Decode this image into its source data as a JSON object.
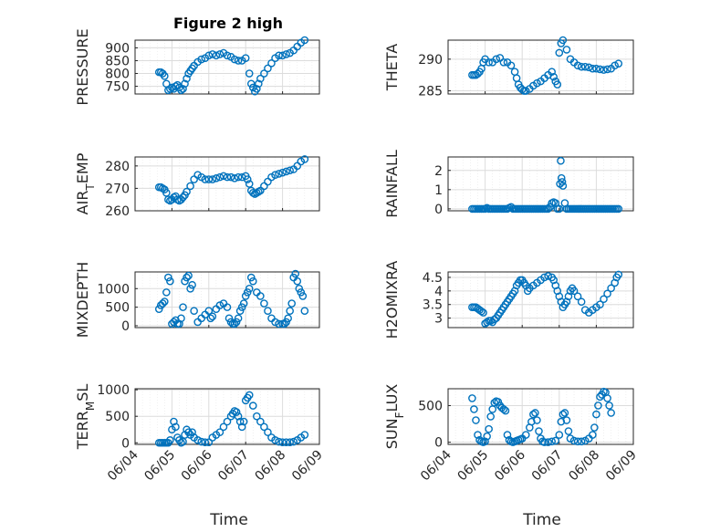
{
  "figure": {
    "title": "Figure 2 high",
    "xlabel": "Time",
    "marker_color": "#0072BD",
    "grid": true
  },
  "chart_data": [
    {
      "type": "scatter",
      "ylabel": "PRESSURE",
      "ylim": [
        720,
        930
      ],
      "yticks": [
        "750",
        "800",
        "850",
        "900"
      ],
      "ytick_values": [
        750,
        800,
        850,
        900
      ],
      "xlim": [
        0,
        5
      ],
      "xticks": [
        "06/04",
        "06/05",
        "06/06",
        "06/07",
        "06/08",
        "06/09"
      ],
      "x": [
        0.65,
        0.7,
        0.75,
        0.8,
        0.85,
        0.9,
        0.95,
        1.0,
        1.05,
        1.1,
        1.15,
        1.2,
        1.25,
        1.3,
        1.35,
        1.4,
        1.45,
        1.5,
        1.55,
        1.6,
        1.7,
        1.8,
        1.9,
        2.0,
        2.1,
        2.2,
        2.3,
        2.4,
        2.5,
        2.6,
        2.7,
        2.8,
        2.9,
        3.0,
        3.1,
        3.15,
        3.2,
        3.25,
        3.3,
        3.35,
        3.4,
        3.5,
        3.6,
        3.7,
        3.8,
        3.9,
        4.0,
        4.1,
        4.2,
        4.3,
        4.4,
        4.5,
        4.6
      ],
      "y": [
        805,
        805,
        800,
        790,
        760,
        735,
        740,
        745,
        740,
        750,
        755,
        745,
        735,
        740,
        760,
        780,
        800,
        810,
        820,
        830,
        845,
        855,
        860,
        870,
        875,
        870,
        875,
        880,
        870,
        865,
        855,
        850,
        850,
        860,
        800,
        760,
        745,
        730,
        740,
        760,
        780,
        800,
        820,
        840,
        860,
        870,
        870,
        875,
        880,
        890,
        905,
        920,
        930
      ]
    },
    {
      "type": "scatter",
      "ylabel": "THETA",
      "ylim": [
        284.5,
        293
      ],
      "yticks": [
        "285",
        "290"
      ],
      "ytick_values": [
        285,
        290
      ],
      "xlim": [
        0,
        5
      ],
      "xticks": [
        "06/04",
        "06/05",
        "06/06",
        "06/07",
        "06/08",
        "06/09"
      ],
      "x": [
        0.65,
        0.7,
        0.75,
        0.8,
        0.85,
        0.9,
        0.95,
        1.0,
        1.1,
        1.2,
        1.3,
        1.4,
        1.5,
        1.6,
        1.7,
        1.8,
        1.85,
        1.9,
        1.95,
        2.0,
        2.05,
        2.1,
        2.2,
        2.3,
        2.4,
        2.5,
        2.6,
        2.7,
        2.8,
        2.85,
        2.9,
        2.95,
        3.0,
        3.05,
        3.1,
        3.2,
        3.3,
        3.4,
        3.5,
        3.6,
        3.7,
        3.8,
        3.9,
        4.0,
        4.1,
        4.2,
        4.3,
        4.4,
        4.5,
        4.6
      ],
      "y": [
        287.5,
        287.5,
        287.5,
        287.7,
        288,
        288.5,
        289.5,
        290,
        289.5,
        289.5,
        290,
        290.2,
        289.5,
        289.5,
        289,
        288,
        287,
        286,
        285.5,
        285.2,
        285,
        285,
        285.3,
        285.8,
        286.2,
        286.5,
        287,
        287.5,
        288,
        287.2,
        286.5,
        286,
        291,
        292.5,
        293,
        291.5,
        290,
        289.5,
        289,
        288.8,
        288.8,
        288.7,
        288.5,
        288.5,
        288.4,
        288.3,
        288.4,
        288.5,
        289,
        289.3
      ]
    },
    {
      "type": "scatter",
      "ylabel": "AIR_TEMP",
      "ylim": [
        260,
        284
      ],
      "yticks": [
        "260",
        "270",
        "280"
      ],
      "ytick_values": [
        260,
        270,
        280
      ],
      "xlim": [
        0,
        5
      ],
      "xticks": [
        "06/04",
        "06/05",
        "06/06",
        "06/07",
        "06/08",
        "06/09"
      ],
      "x": [
        0.65,
        0.7,
        0.75,
        0.8,
        0.85,
        0.9,
        0.95,
        1.0,
        1.05,
        1.1,
        1.15,
        1.2,
        1.25,
        1.3,
        1.35,
        1.4,
        1.5,
        1.6,
        1.7,
        1.8,
        1.9,
        2.0,
        2.1,
        2.2,
        2.3,
        2.4,
        2.5,
        2.6,
        2.7,
        2.8,
        2.9,
        3.0,
        3.05,
        3.1,
        3.15,
        3.2,
        3.25,
        3.3,
        3.35,
        3.4,
        3.5,
        3.6,
        3.7,
        3.8,
        3.9,
        4.0,
        4.1,
        4.2,
        4.3,
        4.4,
        4.5,
        4.6
      ],
      "y": [
        270.5,
        270.5,
        270,
        269.5,
        268,
        265,
        264.5,
        265,
        266,
        266.5,
        265,
        264.5,
        265,
        266,
        267,
        268.5,
        271,
        274,
        276,
        275,
        274,
        274,
        274,
        274.5,
        275,
        275.5,
        275,
        275,
        274.5,
        275,
        275,
        275.5,
        274,
        272,
        269,
        268,
        267.5,
        268,
        268.5,
        269,
        271,
        273,
        275,
        276,
        276.5,
        277,
        277.5,
        278,
        278.5,
        280,
        282,
        283
      ]
    },
    {
      "type": "scatter",
      "ylabel": "RAINFALL",
      "ylim": [
        -0.1,
        2.7
      ],
      "yticks": [
        "0",
        "1",
        "2"
      ],
      "ytick_values": [
        0,
        1,
        2
      ],
      "xlim": [
        0,
        5
      ],
      "xticks": [
        "06/04",
        "06/05",
        "06/06",
        "06/07",
        "06/08",
        "06/09"
      ],
      "x": [
        0.65,
        0.7,
        0.75,
        0.8,
        0.85,
        0.9,
        0.95,
        1.0,
        1.05,
        1.1,
        1.15,
        1.2,
        1.25,
        1.3,
        1.35,
        1.4,
        1.45,
        1.5,
        1.55,
        1.6,
        1.65,
        1.7,
        1.75,
        1.8,
        1.85,
        1.9,
        1.95,
        2.0,
        2.05,
        2.1,
        2.15,
        2.2,
        2.25,
        2.3,
        2.35,
        2.4,
        2.45,
        2.5,
        2.55,
        2.6,
        2.65,
        2.7,
        2.75,
        2.8,
        2.85,
        2.9,
        2.95,
        3.0,
        3.02,
        3.04,
        3.06,
        3.08,
        3.1,
        3.15,
        3.2,
        3.25,
        3.3,
        3.35,
        3.4,
        3.45,
        3.5,
        3.55,
        3.6,
        3.65,
        3.7,
        3.75,
        3.8,
        3.85,
        3.9,
        3.95,
        4.0,
        4.05,
        4.1,
        4.15,
        4.2,
        4.25,
        4.3,
        4.35,
        4.4,
        4.45,
        4.5,
        4.55,
        4.6
      ],
      "y": [
        0,
        0,
        0,
        0,
        0,
        0,
        0,
        0,
        0.05,
        0,
        0,
        0,
        0,
        0,
        0,
        0,
        0,
        0,
        0,
        0,
        0.05,
        0.1,
        0,
        0,
        0,
        0,
        0,
        0,
        0,
        0,
        0,
        0,
        0,
        0,
        0,
        0,
        0,
        0,
        0,
        0,
        0,
        0,
        0.1,
        0.3,
        0.35,
        0.3,
        0,
        0,
        1.3,
        2.5,
        1.6,
        1.4,
        1.2,
        0.3,
        0,
        0,
        0,
        0,
        0,
        0,
        0,
        0,
        0,
        0,
        0,
        0,
        0,
        0,
        0,
        0,
        0,
        0,
        0,
        0,
        0,
        0,
        0,
        0,
        0,
        0,
        0,
        0,
        0
      ]
    },
    {
      "type": "scatter",
      "ylabel": "MIXDEPTH",
      "ylim": [
        -50,
        1450
      ],
      "yticks": [
        "0",
        "500",
        "1000"
      ],
      "ytick_values": [
        0,
        500,
        1000
      ],
      "xlim": [
        0,
        5
      ],
      "xticks": [
        "06/04",
        "06/05",
        "06/06",
        "06/07",
        "06/08",
        "06/09"
      ],
      "x": [
        0.65,
        0.7,
        0.75,
        0.8,
        0.85,
        0.9,
        0.95,
        1.0,
        1.05,
        1.1,
        1.15,
        1.2,
        1.25,
        1.3,
        1.35,
        1.4,
        1.45,
        1.5,
        1.55,
        1.6,
        1.7,
        1.8,
        1.9,
        2.0,
        2.05,
        2.1,
        2.2,
        2.3,
        2.4,
        2.5,
        2.55,
        2.6,
        2.65,
        2.7,
        2.75,
        2.8,
        2.85,
        2.9,
        2.95,
        3.0,
        3.05,
        3.1,
        3.15,
        3.2,
        3.3,
        3.4,
        3.5,
        3.6,
        3.7,
        3.8,
        3.9,
        4.0,
        4.05,
        4.1,
        4.15,
        4.2,
        4.25,
        4.3,
        4.35,
        4.4,
        4.45,
        4.5,
        4.55,
        4.6
      ],
      "y": [
        450,
        550,
        600,
        650,
        900,
        1300,
        1200,
        50,
        100,
        150,
        50,
        50,
        200,
        500,
        1200,
        1300,
        1350,
        1000,
        1100,
        400,
        100,
        200,
        300,
        400,
        200,
        250,
        450,
        550,
        600,
        500,
        200,
        100,
        50,
        50,
        100,
        200,
        400,
        500,
        600,
        800,
        900,
        1000,
        1300,
        1200,
        900,
        800,
        600,
        400,
        200,
        100,
        50,
        50,
        50,
        100,
        200,
        400,
        600,
        1300,
        1400,
        1200,
        1000,
        900,
        800,
        400
      ]
    },
    {
      "type": "scatter",
      "ylabel": "H2OMIXRA",
      "ylim": [
        2.65,
        4.7
      ],
      "yticks": [
        "3",
        "3.5",
        "4",
        "4.5"
      ],
      "ytick_values": [
        3,
        3.5,
        4,
        4.5
      ],
      "xlim": [
        0,
        5
      ],
      "xticks": [
        "06/04",
        "06/05",
        "06/06",
        "06/07",
        "06/08",
        "06/09"
      ],
      "x": [
        0.65,
        0.7,
        0.75,
        0.8,
        0.85,
        0.9,
        0.95,
        1.0,
        1.05,
        1.1,
        1.15,
        1.2,
        1.25,
        1.3,
        1.35,
        1.4,
        1.45,
        1.5,
        1.55,
        1.6,
        1.65,
        1.7,
        1.75,
        1.8,
        1.85,
        1.9,
        1.95,
        2.0,
        2.05,
        2.1,
        2.15,
        2.2,
        2.3,
        2.4,
        2.5,
        2.6,
        2.7,
        2.8,
        2.85,
        2.9,
        2.95,
        3.0,
        3.05,
        3.1,
        3.15,
        3.2,
        3.25,
        3.3,
        3.35,
        3.4,
        3.5,
        3.6,
        3.7,
        3.8,
        3.9,
        4.0,
        4.1,
        4.2,
        4.3,
        4.4,
        4.5,
        4.55,
        4.6
      ],
      "y": [
        3.4,
        3.4,
        3.4,
        3.35,
        3.3,
        3.25,
        3.2,
        2.8,
        2.85,
        2.9,
        2.9,
        2.85,
        2.95,
        3.0,
        3.1,
        3.2,
        3.3,
        3.4,
        3.5,
        3.6,
        3.7,
        3.8,
        3.9,
        4.0,
        4.2,
        4.3,
        4.4,
        4.4,
        4.3,
        4.2,
        4.0,
        4.1,
        4.2,
        4.3,
        4.4,
        4.5,
        4.55,
        4.5,
        4.4,
        4.2,
        4.0,
        3.8,
        3.6,
        3.4,
        3.5,
        3.6,
        3.8,
        4.0,
        4.1,
        4.0,
        3.8,
        3.6,
        3.3,
        3.2,
        3.3,
        3.4,
        3.5,
        3.7,
        3.9,
        4.1,
        4.3,
        4.5,
        4.6
      ]
    },
    {
      "type": "scatter",
      "ylabel": "TERR_MSL",
      "ylim": [
        -30,
        1020
      ],
      "yticks": [
        "0",
        "500",
        "1000"
      ],
      "ytick_values": [
        0,
        500,
        1000
      ],
      "xlim": [
        0,
        5
      ],
      "xticks": [
        "06/04",
        "06/05",
        "06/06",
        "06/07",
        "06/08",
        "06/09"
      ],
      "x": [
        0.65,
        0.7,
        0.75,
        0.8,
        0.85,
        0.9,
        0.95,
        1.0,
        1.05,
        1.1,
        1.15,
        1.2,
        1.25,
        1.3,
        1.35,
        1.4,
        1.45,
        1.5,
        1.55,
        1.6,
        1.7,
        1.8,
        1.9,
        2.0,
        2.1,
        2.2,
        2.3,
        2.4,
        2.5,
        2.6,
        2.65,
        2.7,
        2.75,
        2.8,
        2.85,
        2.9,
        2.95,
        3.0,
        3.05,
        3.1,
        3.2,
        3.3,
        3.4,
        3.5,
        3.6,
        3.7,
        3.8,
        3.9,
        4.0,
        4.1,
        4.2,
        4.3,
        4.4,
        4.5,
        4.6
      ],
      "y": [
        0,
        0,
        0,
        0,
        0,
        0,
        50,
        250,
        400,
        300,
        100,
        50,
        0,
        20,
        150,
        250,
        200,
        150,
        200,
        100,
        50,
        20,
        10,
        10,
        100,
        150,
        200,
        300,
        400,
        500,
        550,
        600,
        580,
        500,
        400,
        300,
        400,
        800,
        850,
        900,
        700,
        500,
        400,
        300,
        200,
        100,
        50,
        20,
        10,
        10,
        10,
        20,
        50,
        100,
        150
      ]
    },
    {
      "type": "scatter",
      "ylabel": "SUN_FLUX",
      "ylim": [
        -30,
        730
      ],
      "yticks": [
        "0",
        "500"
      ],
      "ytick_values": [
        0,
        500
      ],
      "xlim": [
        0,
        5
      ],
      "xticks": [
        "06/04",
        "06/05",
        "06/06",
        "06/07",
        "06/08",
        "06/09"
      ],
      "x": [
        0.65,
        0.7,
        0.75,
        0.8,
        0.85,
        0.9,
        0.95,
        1.0,
        1.05,
        1.1,
        1.15,
        1.2,
        1.25,
        1.3,
        1.35,
        1.4,
        1.45,
        1.5,
        1.55,
        1.6,
        1.65,
        1.7,
        1.75,
        1.8,
        1.85,
        1.9,
        1.95,
        2.0,
        2.1,
        2.2,
        2.25,
        2.3,
        2.35,
        2.4,
        2.45,
        2.5,
        2.55,
        2.6,
        2.7,
        2.8,
        2.9,
        3.0,
        3.05,
        3.1,
        3.15,
        3.2,
        3.25,
        3.3,
        3.4,
        3.5,
        3.6,
        3.7,
        3.8,
        3.9,
        3.95,
        4.0,
        4.05,
        4.1,
        4.15,
        4.2,
        4.25,
        4.3,
        4.35,
        4.4
      ],
      "y": [
        600,
        450,
        300,
        100,
        30,
        10,
        0,
        10,
        80,
        180,
        350,
        450,
        540,
        560,
        550,
        500,
        470,
        450,
        430,
        100,
        30,
        10,
        0,
        10,
        20,
        30,
        40,
        50,
        100,
        200,
        280,
        380,
        400,
        300,
        150,
        50,
        10,
        0,
        0,
        10,
        20,
        100,
        280,
        380,
        400,
        300,
        150,
        50,
        20,
        10,
        10,
        20,
        50,
        100,
        200,
        380,
        500,
        620,
        650,
        690,
        680,
        600,
        500,
        400
      ]
    }
  ]
}
